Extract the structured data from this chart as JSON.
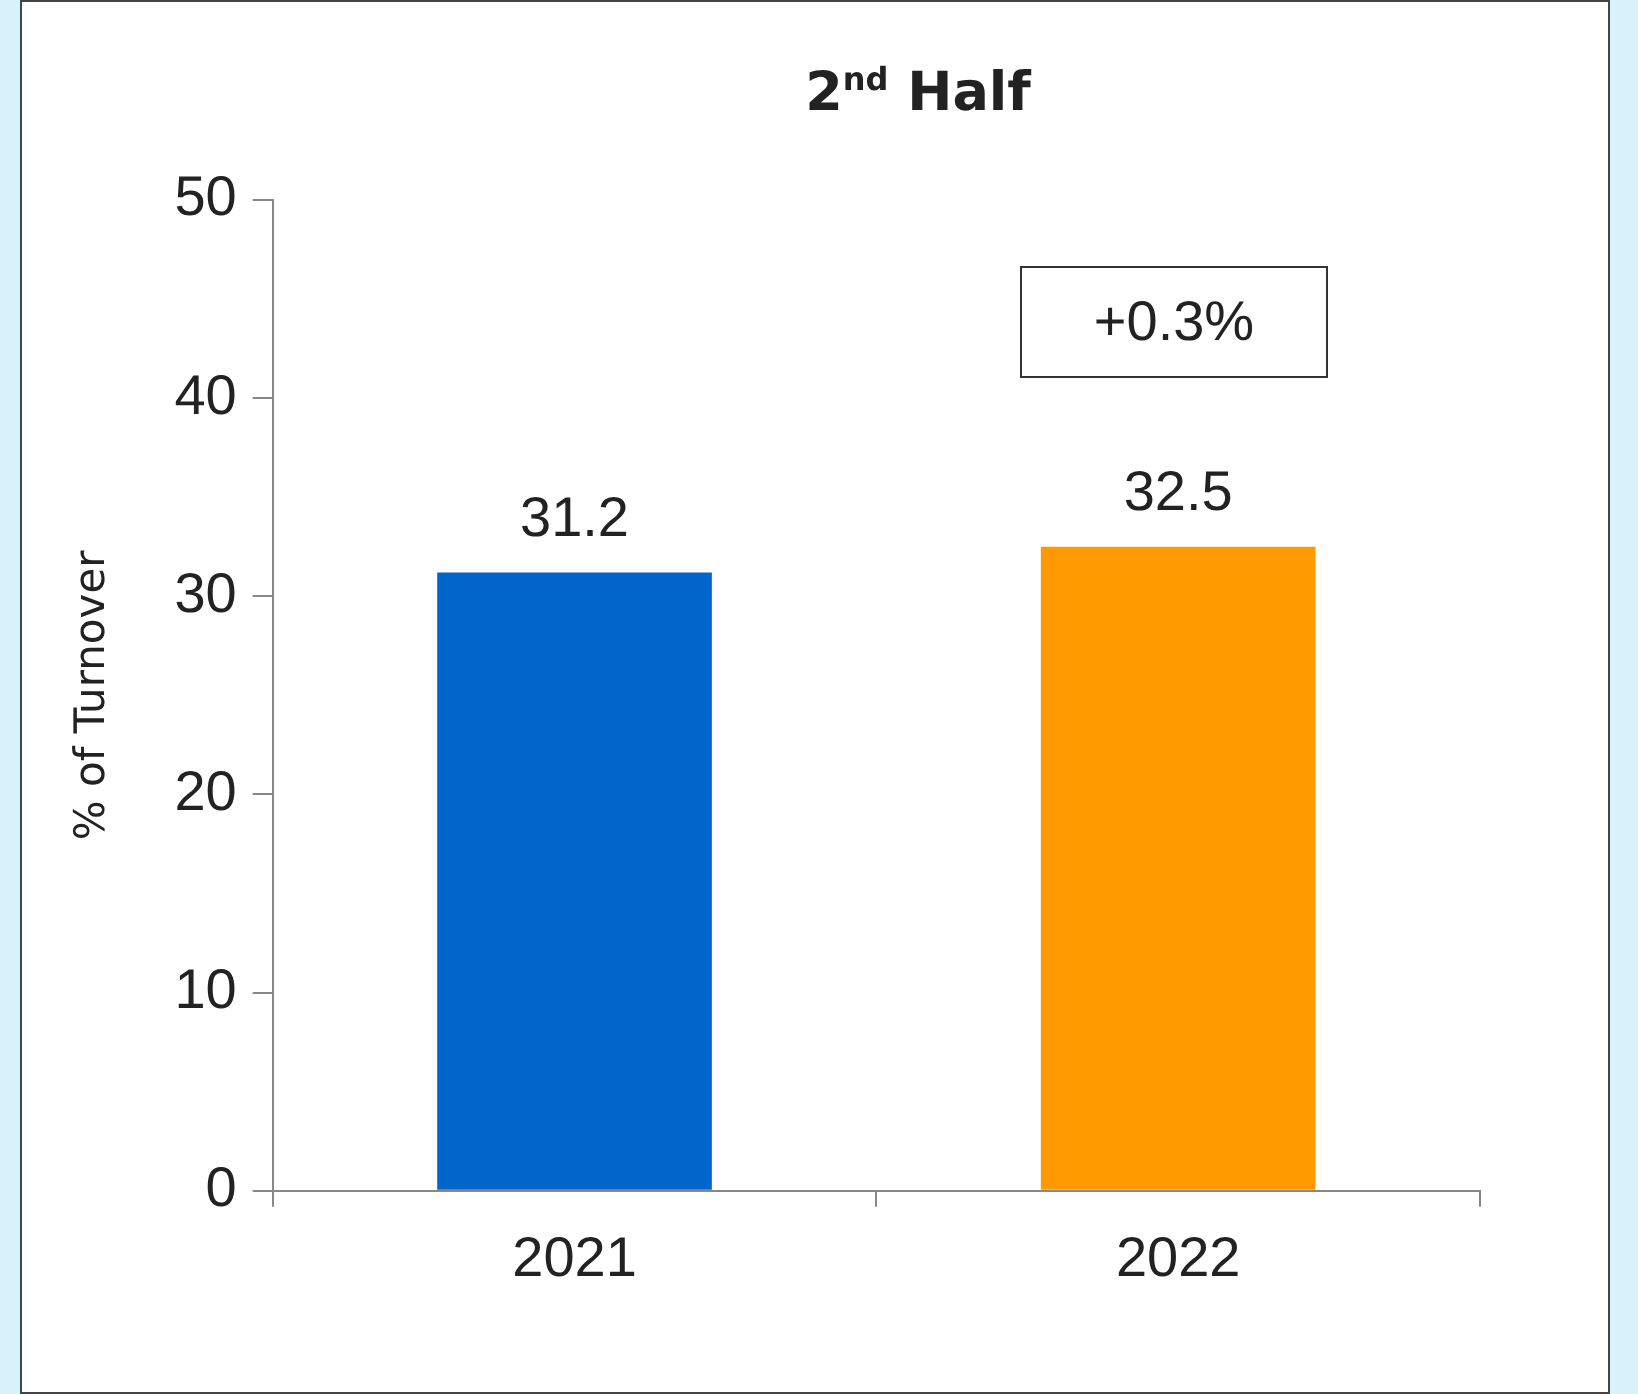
{
  "chart_data": {
    "type": "bar",
    "title": "2$^{nd}$ Half",
    "ylabel": "% of Turnover",
    "categories": [
      "2021",
      "2022"
    ],
    "values": [
      31.2,
      32.5
    ],
    "colors": [
      "#0066cc",
      "#ff9900"
    ],
    "ylim": [
      0,
      50
    ],
    "yticks": [
      0,
      10,
      20,
      30,
      40,
      50
    ],
    "grid": false,
    "legend": false,
    "data_labels": true,
    "annotations": [
      "+0.3%"
    ]
  }
}
